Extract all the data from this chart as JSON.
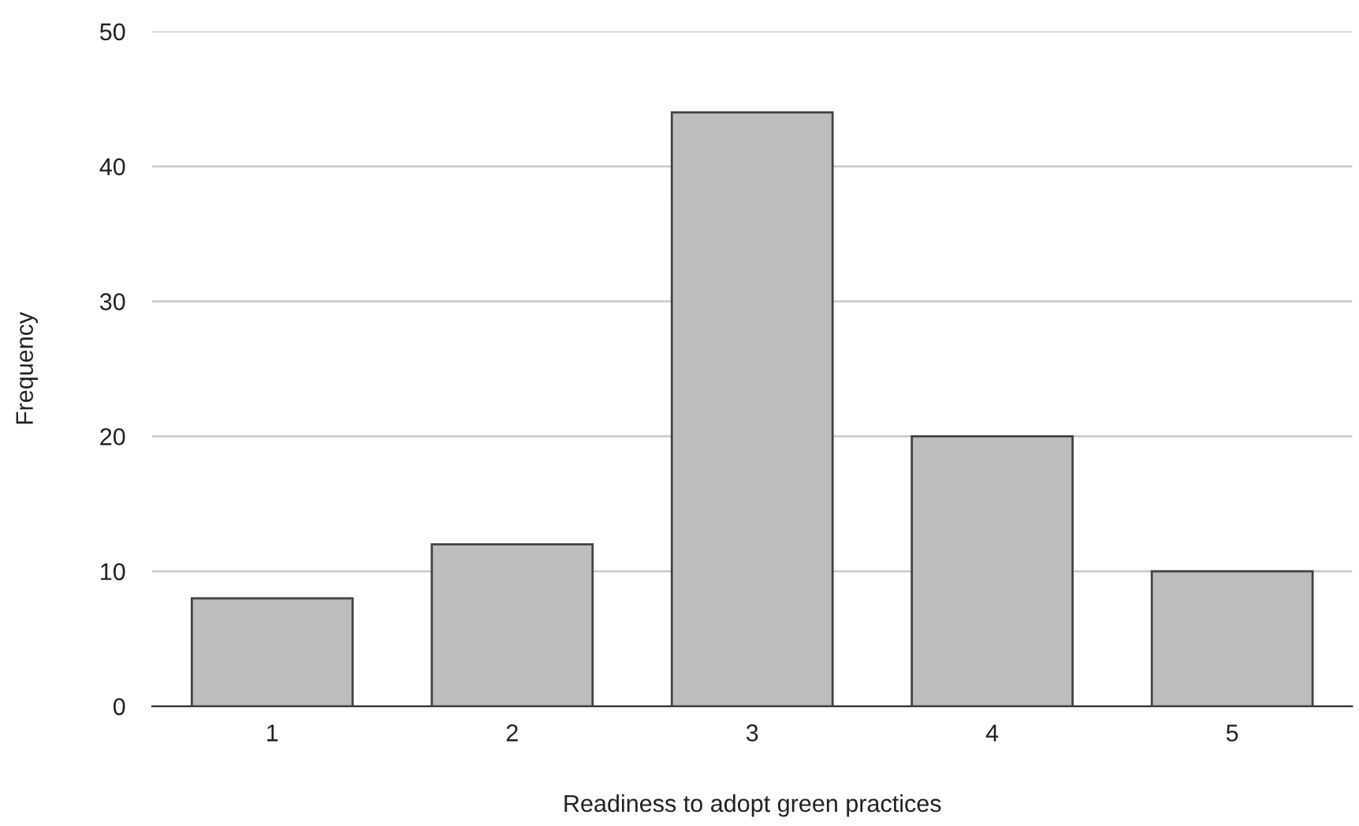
{
  "chart_data": {
    "type": "bar",
    "xlabel": "Readiness to adopt green practices",
    "ylabel": "Frequency",
    "categories": [
      "1",
      "2",
      "3",
      "4",
      "5"
    ],
    "values": [
      8,
      12,
      44,
      20,
      10
    ],
    "color": "#bdbdbd",
    "ylim": [
      0,
      50
    ],
    "yticks": [
      0,
      10,
      20,
      30,
      40,
      50
    ],
    "grid": "y",
    "legend": false
  }
}
